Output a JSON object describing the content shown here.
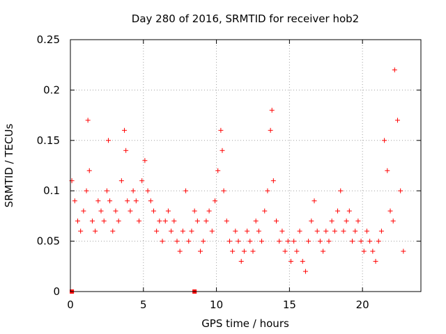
{
  "chart_data": {
    "type": "scatter",
    "title": "Day 280 of 2016, SRMTID for receiver hob2",
    "xlabel": "GPS time / hours",
    "ylabel": "SRMTID / TECUs",
    "xlim": [
      0,
      24
    ],
    "ylim": [
      0,
      0.25
    ],
    "xticks": [
      0,
      5,
      10,
      15,
      20
    ],
    "xtick_labels": [
      "0",
      "5",
      "10",
      "15",
      "20"
    ],
    "yticks": [
      0,
      0.05,
      0.1,
      0.15,
      0.2,
      0.25
    ],
    "ytick_labels": [
      "0",
      "0.05",
      "0.1",
      "0.15",
      "0.2",
      "0.25"
    ],
    "grid": true,
    "marker": "+",
    "color": "#ff0000",
    "series": [
      {
        "name": "SRMTID",
        "x": [
          0.1,
          0.3,
          0.5,
          0.7,
          0.9,
          1.1,
          1.2,
          1.3,
          1.5,
          1.7,
          1.9,
          2.1,
          2.3,
          2.5,
          2.6,
          2.7,
          2.9,
          3.1,
          3.3,
          3.5,
          3.7,
          3.8,
          3.9,
          4.1,
          4.3,
          4.5,
          4.7,
          4.9,
          5.1,
          5.3,
          5.5,
          5.7,
          5.9,
          6.1,
          6.3,
          6.5,
          6.7,
          6.9,
          7.1,
          7.3,
          7.5,
          7.7,
          7.9,
          8.1,
          8.3,
          8.5,
          8.7,
          8.9,
          9.1,
          9.3,
          9.5,
          9.7,
          9.9,
          10.1,
          10.3,
          10.4,
          10.5,
          10.7,
          10.9,
          11.1,
          11.3,
          11.5,
          11.7,
          11.9,
          12.1,
          12.3,
          12.5,
          12.7,
          12.9,
          13.1,
          13.3,
          13.5,
          13.7,
          13.8,
          13.9,
          14.1,
          14.3,
          14.5,
          14.7,
          14.9,
          15.1,
          15.3,
          15.5,
          15.7,
          15.9,
          16.1,
          16.3,
          16.5,
          16.7,
          16.9,
          17.1,
          17.3,
          17.5,
          17.7,
          17.9,
          18.1,
          18.3,
          18.5,
          18.7,
          18.9,
          19.1,
          19.3,
          19.5,
          19.7,
          19.9,
          20.1,
          20.3,
          20.5,
          20.7,
          20.9,
          21.1,
          21.3,
          21.5,
          21.7,
          21.9,
          22.1,
          22.2,
          22.4,
          22.6,
          22.8
        ],
        "y": [
          0.11,
          0.09,
          0.07,
          0.06,
          0.08,
          0.1,
          0.17,
          0.12,
          0.07,
          0.06,
          0.09,
          0.08,
          0.07,
          0.1,
          0.15,
          0.09,
          0.06,
          0.08,
          0.07,
          0.11,
          0.16,
          0.14,
          0.09,
          0.08,
          0.1,
          0.09,
          0.07,
          0.11,
          0.13,
          0.1,
          0.09,
          0.08,
          0.06,
          0.07,
          0.05,
          0.07,
          0.08,
          0.06,
          0.07,
          0.05,
          0.04,
          0.06,
          0.1,
          0.05,
          0.06,
          0.08,
          0.07,
          0.04,
          0.05,
          0.07,
          0.08,
          0.06,
          0.09,
          0.12,
          0.16,
          0.14,
          0.1,
          0.07,
          0.05,
          0.04,
          0.06,
          0.05,
          0.03,
          0.04,
          0.06,
          0.05,
          0.04,
          0.07,
          0.06,
          0.05,
          0.08,
          0.1,
          0.16,
          0.18,
          0.11,
          0.07,
          0.05,
          0.06,
          0.04,
          0.05,
          0.03,
          0.05,
          0.04,
          0.06,
          0.03,
          0.02,
          0.05,
          0.07,
          0.09,
          0.06,
          0.05,
          0.04,
          0.06,
          0.05,
          0.07,
          0.06,
          0.08,
          0.1,
          0.06,
          0.07,
          0.08,
          0.05,
          0.06,
          0.07,
          0.05,
          0.04,
          0.06,
          0.05,
          0.04,
          0.03,
          0.05,
          0.06,
          0.15,
          0.12,
          0.08,
          0.07,
          0.22,
          0.17,
          0.1,
          0.04
        ]
      }
    ],
    "bad_markers_x": [
      0.1,
      8.5
    ]
  }
}
